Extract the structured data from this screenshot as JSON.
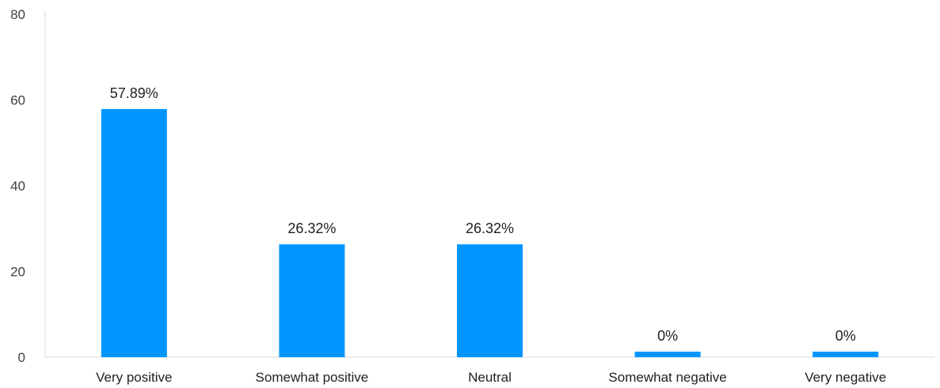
{
  "chart_data": {
    "type": "bar",
    "title": "",
    "xlabel": "",
    "ylabel": "",
    "categories": [
      "Very positive",
      "Somewhat positive",
      "Neutral",
      "Somewhat negative",
      "Very negative"
    ],
    "values": [
      57.89,
      26.32,
      26.32,
      0,
      0
    ],
    "data_labels": [
      "57.89%",
      "26.32%",
      "26.32%",
      "0%",
      "0%"
    ],
    "ylim": [
      0,
      80
    ],
    "yticks": [
      0,
      20,
      40,
      60,
      80
    ],
    "grid": false,
    "legend": "none",
    "bar_color": "#0095FF",
    "axis_color": "#D9D9D9"
  }
}
